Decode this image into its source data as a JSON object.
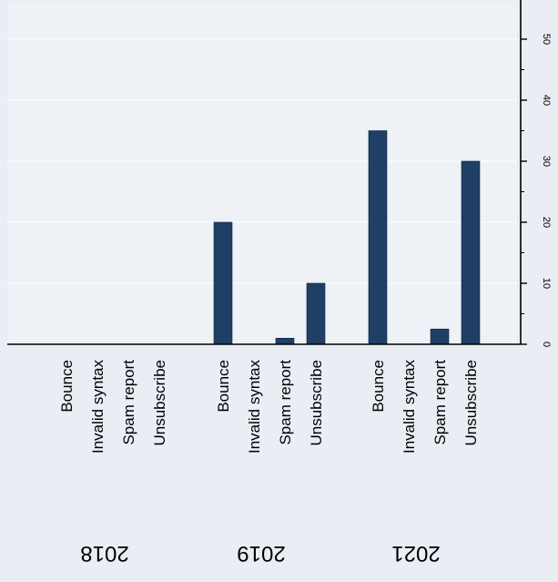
{
  "chart_data": {
    "type": "bar",
    "orientation": "vertical",
    "groups": [
      "2018",
      "2019",
      "2021"
    ],
    "categories": [
      "Bounce",
      "Invalid syntax",
      "Spam report",
      "Unsubscribe"
    ],
    "series": [
      {
        "group": "2018",
        "values": [
          0,
          0,
          0,
          0
        ]
      },
      {
        "group": "2019",
        "values": [
          20,
          0,
          1,
          10
        ]
      },
      {
        "group": "2021",
        "values": [
          35,
          0,
          2.5,
          30
        ]
      }
    ],
    "y_ticks": [
      "0",
      "10",
      "20",
      "30",
      "40",
      "50"
    ],
    "ylim": [
      0,
      55
    ],
    "axis_position": "right",
    "grid": true,
    "colors": {
      "bar": "#1f3f66",
      "background": "#e8eef4",
      "plot_background": "#eef2f7",
      "grid": "#ffffff",
      "axis": "#000000"
    }
  }
}
